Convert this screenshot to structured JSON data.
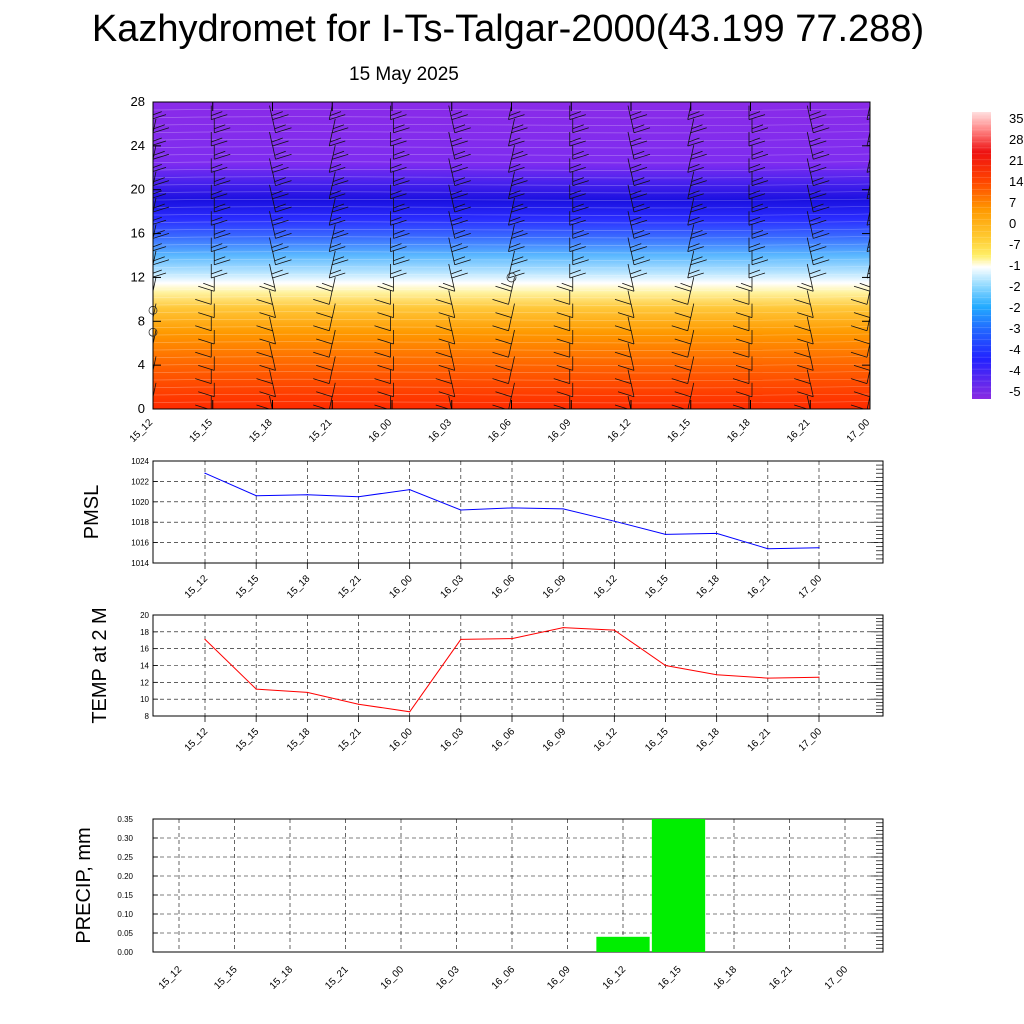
{
  "header": {
    "title": "Kazhydromet for I-Ts-Talgar-2000(43.199 77.288)",
    "date": "15 May 2025"
  },
  "time_labels": [
    "15_12",
    "15_15",
    "15_18",
    "15_21",
    "16_00",
    "16_03",
    "16_06",
    "16_09",
    "16_12",
    "16_15",
    "16_18",
    "16_21",
    "17_00"
  ],
  "chart_data": [
    {
      "type": "heatmap",
      "title": "",
      "xlabel": "",
      "ylabel": "",
      "x": [
        "15_12",
        "15_15",
        "15_18",
        "15_21",
        "16_00",
        "16_03",
        "16_06",
        "16_09",
        "16_12",
        "16_15",
        "16_18",
        "16_21",
        "17_00"
      ],
      "ylim": [
        0,
        28
      ],
      "y_ticks": [
        0,
        4,
        8,
        12,
        16,
        20,
        24,
        28
      ],
      "colorbar_labels": [
        "35",
        "28",
        "21",
        "14",
        "7",
        "0",
        "-7",
        "-1",
        "-2",
        "-2",
        "-3",
        "-4",
        "-4",
        "-5"
      ],
      "colormap": [
        "#8b2be2",
        "#2222ff",
        "#44aaff",
        "#ffffff",
        "#ffee44",
        "#ff9900",
        "#ff2200",
        "#ff4444",
        "#ff9999",
        "#ffdddd"
      ],
      "overlay": "wind barbs",
      "grid": false
    },
    {
      "type": "line",
      "ylabel": "PMSL",
      "ylim": [
        1014,
        1024
      ],
      "y_ticks": [
        1014,
        1016,
        1018,
        1020,
        1022,
        1024
      ],
      "x": [
        "15_12",
        "15_15",
        "15_18",
        "15_21",
        "16_00",
        "16_03",
        "16_06",
        "16_09",
        "16_12",
        "16_15",
        "16_18",
        "16_21",
        "17_00"
      ],
      "series": [
        {
          "values": [
            1022.8,
            1020.6,
            1020.7,
            1020.5,
            1021.2,
            1019.2,
            1019.4,
            1019.3,
            1018.1,
            1016.8,
            1016.9,
            1015.4,
            1015.5
          ],
          "color": "#0000ff"
        }
      ],
      "grid": true
    },
    {
      "type": "line",
      "ylabel": "TEMP at 2 M",
      "ylim": [
        8,
        20
      ],
      "y_ticks": [
        8,
        10,
        12,
        14,
        16,
        18,
        20
      ],
      "x": [
        "15_12",
        "15_15",
        "15_18",
        "15_21",
        "16_00",
        "16_03",
        "16_06",
        "16_09",
        "16_12",
        "16_15",
        "16_18",
        "16_21",
        "17_00"
      ],
      "series": [
        {
          "values": [
            17.1,
            11.2,
            10.8,
            9.4,
            8.5,
            17.1,
            17.2,
            18.5,
            18.2,
            14.0,
            12.9,
            12.5,
            12.6
          ],
          "color": "#ff0000"
        }
      ],
      "grid": true
    },
    {
      "type": "bar",
      "ylabel": "PRECIP, mm",
      "ylim": [
        0,
        0.35
      ],
      "y_ticks": [
        "0.00",
        "0.05",
        "0.10",
        "0.15",
        "0.20",
        "0.25",
        "0.30",
        "0.35"
      ],
      "categories": [
        "15_12",
        "15_15",
        "15_18",
        "15_21",
        "16_00",
        "16_03",
        "16_06",
        "16_09",
        "16_12",
        "16_15",
        "16_18",
        "16_21",
        "17_00"
      ],
      "values": [
        0,
        0,
        0,
        0,
        0,
        0,
        0,
        0,
        0.04,
        0.35,
        0,
        0,
        0
      ],
      "color": "#00ee00",
      "grid": true
    }
  ]
}
